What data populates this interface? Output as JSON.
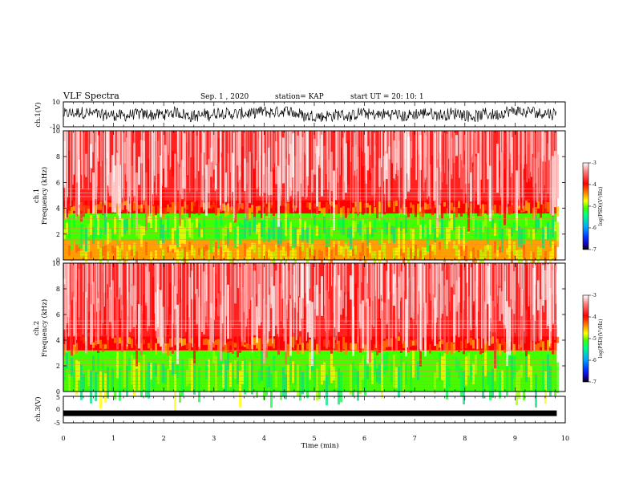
{
  "header": {
    "title": "VLF Spectra",
    "date": "Sep. 1 , 2020",
    "station": "station= KAP",
    "start": "start  UT =   20: 10: 1"
  },
  "colors": {
    "wave": "#000000",
    "scale": [
      "#000000",
      "#1a00b0",
      "#0030ff",
      "#00a8ff",
      "#00ff80",
      "#40ff00",
      "#ffff00",
      "#ff8000",
      "#ff0000",
      "#ff8080",
      "#ffffff"
    ]
  },
  "chart_data": {
    "type": "heatmap",
    "xlabel": "Time  (min)",
    "x_ticks": [
      "0",
      "1",
      "2",
      "3",
      "4",
      "5",
      "6",
      "7",
      "8",
      "9",
      "10"
    ],
    "xlim": [
      0,
      10
    ],
    "data_end_min": 9.83,
    "panels": [
      {
        "id": "ch1-waveform",
        "ylabel": "ch.1(V)",
        "ylim": [
          -10,
          10
        ],
        "y_ticks": [
          "10",
          "-10"
        ],
        "amplitude_range": [
          -6,
          6
        ]
      },
      {
        "id": "ch1-spectrogram",
        "ylabel": "ch.1\nFrequency  (kHz)",
        "ylim": [
          0,
          10
        ],
        "y_ticks": [
          "10",
          "8",
          "6",
          "4",
          "2",
          "0"
        ],
        "bands": [
          {
            "range_khz": [
              0,
              1.5
            ],
            "level": "-4.5 to -5"
          },
          {
            "range_khz": [
              1.5,
              3.6
            ],
            "level": "-5 to -5.5"
          },
          {
            "range_khz": [
              3.6,
              4.6
            ],
            "level": "-4 to -4.5"
          },
          {
            "range_khz": [
              4.6,
              10
            ],
            "level": "-3 to -4"
          }
        ],
        "colorbar": {
          "label": "log(PSD)(V²/Hz)",
          "ticks": [
            "-3",
            "-4",
            "-5",
            "-6",
            "-7"
          ],
          "range": [
            -7,
            -3
          ]
        }
      },
      {
        "id": "ch2-spectrogram",
        "ylabel": "ch.2\nFrequency  (kHz)",
        "ylim": [
          0,
          10
        ],
        "y_ticks": [
          "10",
          "8",
          "6",
          "4",
          "2",
          "0"
        ],
        "bands": [
          {
            "range_khz": [
              0,
              3.2
            ],
            "level": "-5 to -5.5"
          },
          {
            "range_khz": [
              3.2,
              4.3
            ],
            "level": "-4 to -4.5"
          },
          {
            "range_khz": [
              4.3,
              10
            ],
            "level": "-3 to -4"
          }
        ],
        "colorbar": {
          "label": "log(PSD)(V²/Hz)",
          "ticks": [
            "-3",
            "-4",
            "-5",
            "-6",
            "-7"
          ],
          "range": [
            -7,
            -3
          ]
        }
      },
      {
        "id": "ch3-waveform",
        "ylabel": "ch.3(V)",
        "ylim": [
          -5,
          5
        ],
        "y_ticks": [
          "5",
          "0",
          "-5"
        ],
        "level_v": -1.4
      }
    ]
  }
}
